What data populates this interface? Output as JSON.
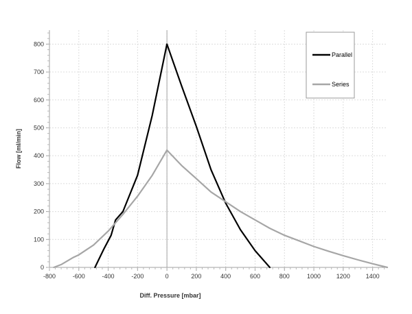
{
  "chart_data": {
    "type": "line",
    "title": "",
    "xlabel": "Diff. Pressure [mbar]",
    "ylabel": "Flow [ml/min]",
    "xlim": [
      -800,
      1500
    ],
    "ylim": [
      0,
      850
    ],
    "x_ticks": [
      -800,
      -600,
      -400,
      -200,
      0,
      200,
      400,
      600,
      800,
      1000,
      1200,
      1400
    ],
    "y_ticks": [
      0,
      100,
      200,
      300,
      400,
      500,
      600,
      700,
      800
    ],
    "grid": true,
    "legend_position": "top-right",
    "series": [
      {
        "name": "Parallel",
        "color": "#000000",
        "x": [
          -490,
          -430,
          -380,
          -350,
          -300,
          -200,
          -100,
          0,
          100,
          200,
          300,
          400,
          500,
          600,
          700
        ],
        "y": [
          0,
          65,
          115,
          170,
          200,
          330,
          545,
          800,
          650,
          505,
          350,
          230,
          135,
          60,
          0
        ]
      },
      {
        "name": "Series",
        "color": "#a6a6a6",
        "x": [
          -770,
          -720,
          -640,
          -600,
          -500,
          -400,
          -300,
          -200,
          -100,
          0,
          100,
          200,
          300,
          400,
          500,
          600,
          700,
          800,
          900,
          1000,
          1100,
          1200,
          1300,
          1400,
          1500
        ],
        "y": [
          0,
          10,
          35,
          45,
          80,
          130,
          190,
          255,
          330,
          420,
          365,
          318,
          270,
          235,
          200,
          170,
          140,
          115,
          95,
          75,
          58,
          42,
          27,
          13,
          0
        ]
      }
    ]
  }
}
